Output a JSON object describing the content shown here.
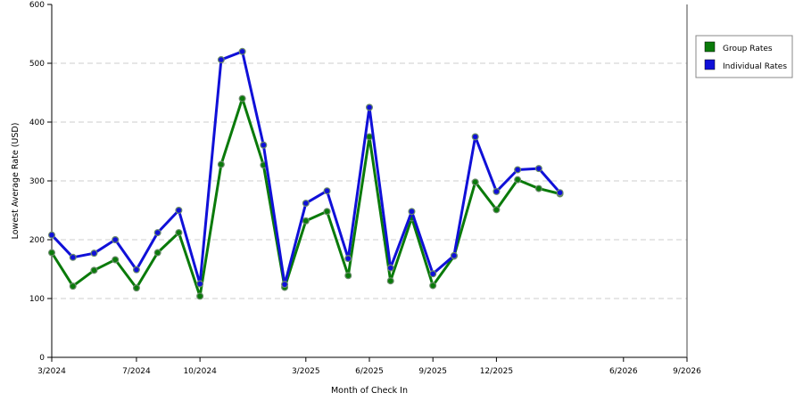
{
  "chart_data": {
    "type": "line",
    "xlabel": "Month of Check In",
    "ylabel": "Lowest Average Rate (USD)",
    "ylim": [
      0,
      600
    ],
    "yticks": [
      0,
      100,
      200,
      300,
      400,
      500,
      600
    ],
    "grid": "horizontal dashed",
    "legend_position": "right",
    "x": [
      "3/2024",
      "4/2024",
      "5/2024",
      "6/2024",
      "7/2024",
      "8/2024",
      "9/2024",
      "10/2024",
      "11/2024",
      "12/2024",
      "1/2025",
      "2/2025",
      "3/2025",
      "4/2025",
      "5/2025",
      "6/2025",
      "7/2025",
      "8/2025",
      "9/2025",
      "10/2025",
      "11/2025",
      "12/2025",
      "1/2026",
      "2/2026",
      "3/2026",
      "4/2026",
      "5/2026",
      "6/2026",
      "7/2026",
      "8/2026",
      "9/2026"
    ],
    "x_tick_labels": [
      "3/2024",
      "7/2024",
      "10/2024",
      "3/2025",
      "6/2025",
      "9/2025",
      "12/2025",
      "6/2026",
      "9/2026"
    ],
    "series": [
      {
        "name": "Group Rates",
        "color": "#0a7a0a",
        "points": [
          {
            "x": "3/2024",
            "y": 178
          },
          {
            "x": "4/2024",
            "y": 121
          },
          {
            "x": "5/2024",
            "y": 148
          },
          {
            "x": "6/2024",
            "y": 166
          },
          {
            "x": "7/2024",
            "y": 118
          },
          {
            "x": "8/2024",
            "y": 178
          },
          {
            "x": "9/2024",
            "y": 212
          },
          {
            "x": "10/2024",
            "y": 104
          },
          {
            "x": "11/2024",
            "y": 328
          },
          {
            "x": "12/2024",
            "y": 440
          },
          {
            "x": "1/2025",
            "y": 327
          },
          {
            "x": "2/2025",
            "y": 119
          },
          {
            "x": "3/2025",
            "y": 232
          },
          {
            "x": "4/2025",
            "y": 248
          },
          {
            "x": "5/2025",
            "y": 139
          },
          {
            "x": "6/2025",
            "y": 375
          },
          {
            "x": "7/2025",
            "y": 130
          },
          {
            "x": "8/2025",
            "y": 237
          },
          {
            "x": "9/2025",
            "y": 122
          },
          {
            "x": "10/2025",
            "y": 172
          },
          {
            "x": "11/2025",
            "y": 298
          },
          {
            "x": "12/2025",
            "y": 251
          },
          {
            "x": "1/2026",
            "y": 302
          },
          {
            "x": "2/2026",
            "y": 287
          },
          {
            "x": "3/2026",
            "y": 278
          }
        ]
      },
      {
        "name": "Individual Rates",
        "color": "#1010d8",
        "points": [
          {
            "x": "3/2024",
            "y": 208
          },
          {
            "x": "4/2024",
            "y": 170
          },
          {
            "x": "5/2024",
            "y": 177
          },
          {
            "x": "6/2024",
            "y": 200
          },
          {
            "x": "7/2024",
            "y": 149
          },
          {
            "x": "8/2024",
            "y": 212
          },
          {
            "x": "9/2024",
            "y": 250
          },
          {
            "x": "10/2024",
            "y": 125
          },
          {
            "x": "11/2024",
            "y": 506
          },
          {
            "x": "12/2024",
            "y": 520
          },
          {
            "x": "1/2025",
            "y": 361
          },
          {
            "x": "2/2025",
            "y": 124
          },
          {
            "x": "3/2025",
            "y": 262
          },
          {
            "x": "4/2025",
            "y": 283
          },
          {
            "x": "5/2025",
            "y": 168
          },
          {
            "x": "6/2025",
            "y": 425
          },
          {
            "x": "7/2025",
            "y": 152
          },
          {
            "x": "8/2025",
            "y": 248
          },
          {
            "x": "9/2025",
            "y": 142
          },
          {
            "x": "10/2025",
            "y": 173
          },
          {
            "x": "11/2025",
            "y": 375
          },
          {
            "x": "12/2025",
            "y": 282
          },
          {
            "x": "1/2026",
            "y": 319
          },
          {
            "x": "2/2026",
            "y": 321
          },
          {
            "x": "3/2026",
            "y": 280
          }
        ]
      }
    ]
  },
  "colors": {
    "grid": "#cccccc",
    "axis": "#000000",
    "background": "#ffffff",
    "legend_border": "#888888"
  }
}
